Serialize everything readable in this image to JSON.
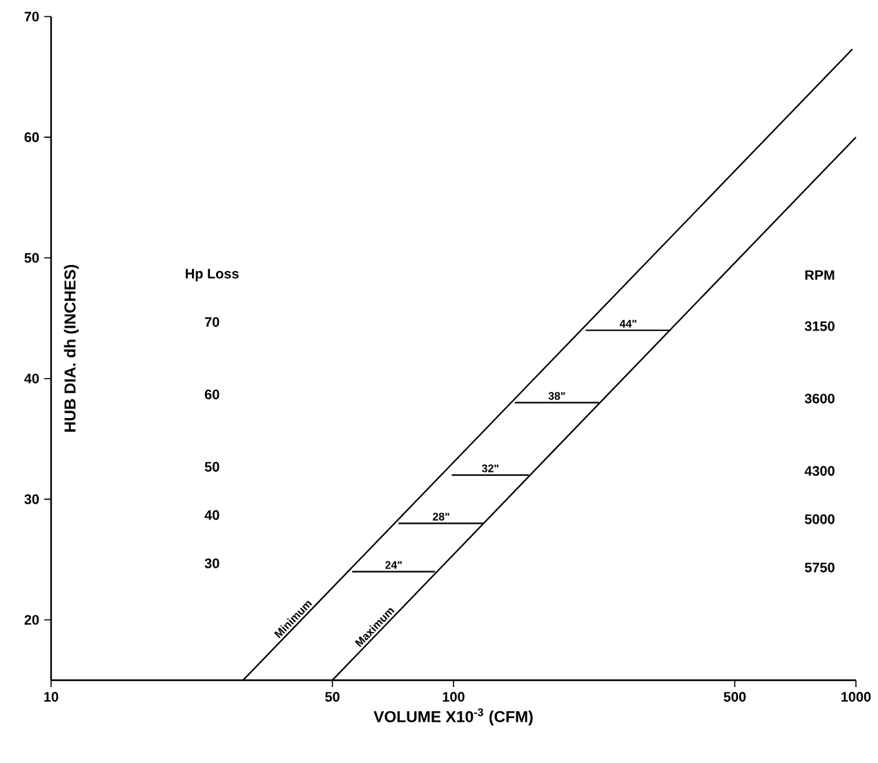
{
  "chart_data": {
    "type": "line",
    "xlabel": "VOLUME X10$^{-3}$ (CFM)",
    "ylabel": "HUB DIA. dh (INCHES)",
    "log": "x",
    "xlim": [
      10,
      1000
    ],
    "ylim": [
      15,
      70
    ],
    "xticks": [
      10,
      50,
      100,
      500,
      1000
    ],
    "yticks": [
      20,
      30,
      40,
      50,
      60,
      70
    ],
    "grid": false,
    "legend": false,
    "marker": "none",
    "line_style": "solid",
    "series": [
      {
        "name": "Minimum",
        "color": "#000000",
        "x": [
          30,
          980
        ],
        "values": [
          15,
          67.3
        ]
      },
      {
        "name": "Maximum",
        "color": "#000000",
        "x": [
          50,
          1000
        ],
        "values": [
          15,
          60
        ]
      },
      {
        "name": "24\"",
        "color": "#000000",
        "x": [
          56,
          90
        ],
        "values": [
          24,
          24
        ]
      },
      {
        "name": "28\"",
        "color": "#000000",
        "x": [
          73,
          119
        ],
        "values": [
          28,
          28
        ]
      },
      {
        "name": "32\"",
        "color": "#000000",
        "x": [
          99,
          154
        ],
        "values": [
          32,
          32
        ]
      },
      {
        "name": "38\"",
        "color": "#000000",
        "x": [
          142,
          230
        ],
        "values": [
          38,
          38
        ]
      },
      {
        "name": "44\"",
        "color": "#000000",
        "x": [
          213,
          347
        ],
        "values": [
          44,
          44
        ]
      }
    ],
    "annotations": [
      "Hp Loss",
      "70",
      "60",
      "50",
      "40",
      "30",
      "RPM",
      "3150",
      "3600",
      "4300",
      "5000",
      "5750"
    ]
  }
}
